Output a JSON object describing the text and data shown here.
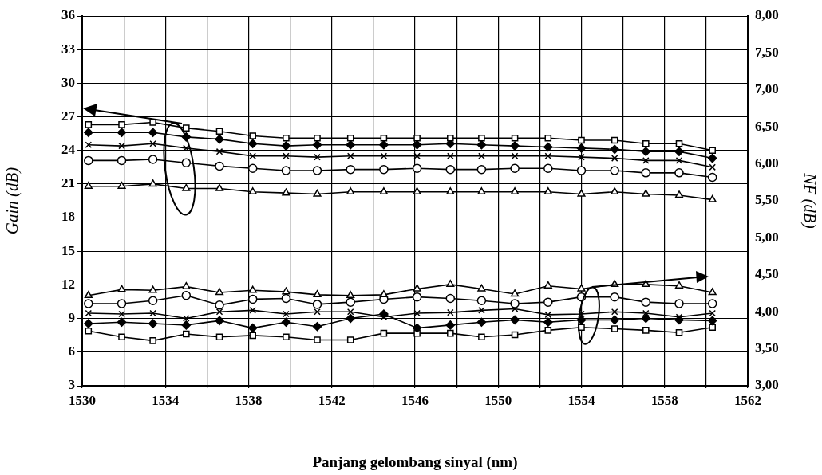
{
  "chart_data": {
    "type": "line",
    "xlabel": "Panjang gelombang sinyal (nm)",
    "ylabel": "Gain (dB)",
    "y2label": "NF (dB)",
    "x": [
      1530.3,
      1531.9,
      1533.4,
      1535.0,
      1536.6,
      1538.2,
      1539.8,
      1541.3,
      1542.9,
      1544.5,
      1546.1,
      1547.7,
      1549.2,
      1550.8,
      1552.4,
      1554.0,
      1555.6,
      1557.1,
      1558.7,
      1560.3
    ],
    "xlim": [
      1530,
      1562
    ],
    "xticks": [
      1530,
      {
        "value": 1532,
        "label": null
      },
      1534,
      {
        "value": 1536,
        "label": null
      },
      1538,
      {
        "value": 1540,
        "label": null
      },
      1542,
      {
        "value": 1544,
        "label": null
      },
      1546,
      {
        "value": 1548,
        "label": null
      },
      1550,
      {
        "value": 1552,
        "label": null
      },
      1554,
      {
        "value": 1556,
        "label": null
      },
      1558,
      {
        "value": 1560,
        "label": null
      },
      1562
    ],
    "ylim": [
      3,
      36
    ],
    "yticks": [
      3,
      6,
      9,
      12,
      15,
      18,
      21,
      24,
      27,
      30,
      33,
      36
    ],
    "y2lim": [
      3,
      8
    ],
    "y2ticks": [
      {
        "value": 3,
        "label": "3,00"
      },
      {
        "value": 3.5,
        "label": "3,50"
      },
      {
        "value": 4,
        "label": "4,00"
      },
      {
        "value": 4.5,
        "label": "4,50"
      },
      {
        "value": 5,
        "label": "5,00"
      },
      {
        "value": 5.5,
        "label": "5,50"
      },
      {
        "value": 6,
        "label": "6,00"
      },
      {
        "value": 6.5,
        "label": "6,50"
      },
      {
        "value": 7,
        "label": "7,00"
      },
      {
        "value": 7.5,
        "label": "7,50"
      },
      {
        "value": 8,
        "label": "8,00"
      }
    ],
    "grid": true,
    "legend": false,
    "series": [
      {
        "color": "#000000",
        "marker": "square",
        "values": [
          26.3,
          26.3,
          26.5,
          26.0,
          25.7,
          25.3,
          25.1,
          25.1,
          25.1,
          25.1,
          25.1,
          25.1,
          25.1,
          25.1,
          25.1,
          24.9,
          24.9,
          24.6,
          24.6,
          24.0
        ]
      },
      {
        "color": "#000000",
        "marker": "diamond",
        "values": [
          25.6,
          25.6,
          25.6,
          25.2,
          25.0,
          24.6,
          24.4,
          24.5,
          24.5,
          24.5,
          24.5,
          24.6,
          24.5,
          24.4,
          24.3,
          24.2,
          24.1,
          23.9,
          23.9,
          23.3
        ]
      },
      {
        "color": "#000000",
        "marker": "cross",
        "values": [
          24.5,
          24.4,
          24.6,
          24.2,
          23.9,
          23.5,
          23.5,
          23.4,
          23.5,
          23.5,
          23.5,
          23.5,
          23.5,
          23.5,
          23.5,
          23.4,
          23.3,
          23.1,
          23.1,
          22.5
        ]
      },
      {
        "color": "#000000",
        "marker": "circle",
        "values": [
          23.1,
          23.1,
          23.2,
          22.9,
          22.6,
          22.4,
          22.2,
          22.2,
          22.3,
          22.3,
          22.4,
          22.3,
          22.3,
          22.4,
          22.4,
          22.2,
          22.2,
          22.0,
          22.0,
          21.6
        ]
      },
      {
        "color": "#000000",
        "marker": "triangle",
        "values": [
          20.8,
          20.8,
          21.0,
          20.6,
          20.6,
          20.3,
          20.2,
          20.1,
          20.3,
          20.3,
          20.3,
          20.3,
          20.3,
          20.3,
          20.3,
          20.1,
          20.3,
          20.1,
          20.0,
          19.6
        ]
      },
      {
        "color": "#000000",
        "marker": "triangle",
        "axis": "y2",
        "values": [
          4.22,
          4.3,
          4.29,
          4.34,
          4.26,
          4.29,
          4.27,
          4.23,
          4.22,
          4.23,
          4.31,
          4.37,
          4.31,
          4.24,
          4.35,
          4.31,
          4.37,
          4.37,
          4.35,
          4.26
        ]
      },
      {
        "color": "#000000",
        "marker": "circle",
        "axis": "y2",
        "values": [
          4.11,
          4.11,
          4.15,
          4.22,
          4.09,
          4.17,
          4.18,
          4.1,
          4.13,
          4.17,
          4.2,
          4.18,
          4.15,
          4.11,
          4.13,
          4.2,
          4.2,
          4.13,
          4.11,
          4.11
        ]
      },
      {
        "color": "#000000",
        "marker": "cross",
        "axis": "y2",
        "values": [
          3.98,
          3.97,
          3.98,
          3.91,
          4.0,
          4.02,
          3.97,
          4.0,
          4.0,
          3.93,
          3.98,
          3.99,
          4.02,
          4.04,
          3.96,
          3.97,
          4.0,
          3.98,
          3.93,
          3.98
        ]
      },
      {
        "color": "#000000",
        "marker": "diamond",
        "axis": "y2",
        "values": [
          3.84,
          3.86,
          3.84,
          3.82,
          3.88,
          3.78,
          3.86,
          3.8,
          3.91,
          3.97,
          3.78,
          3.82,
          3.86,
          3.89,
          3.86,
          3.89,
          3.89,
          3.91,
          3.89,
          3.88
        ]
      },
      {
        "color": "#000000",
        "marker": "square",
        "axis": "y2",
        "values": [
          3.74,
          3.66,
          3.61,
          3.7,
          3.66,
          3.68,
          3.66,
          3.62,
          3.62,
          3.71,
          3.71,
          3.71,
          3.66,
          3.69,
          3.75,
          3.79,
          3.77,
          3.75,
          3.72,
          3.79
        ]
      }
    ]
  }
}
